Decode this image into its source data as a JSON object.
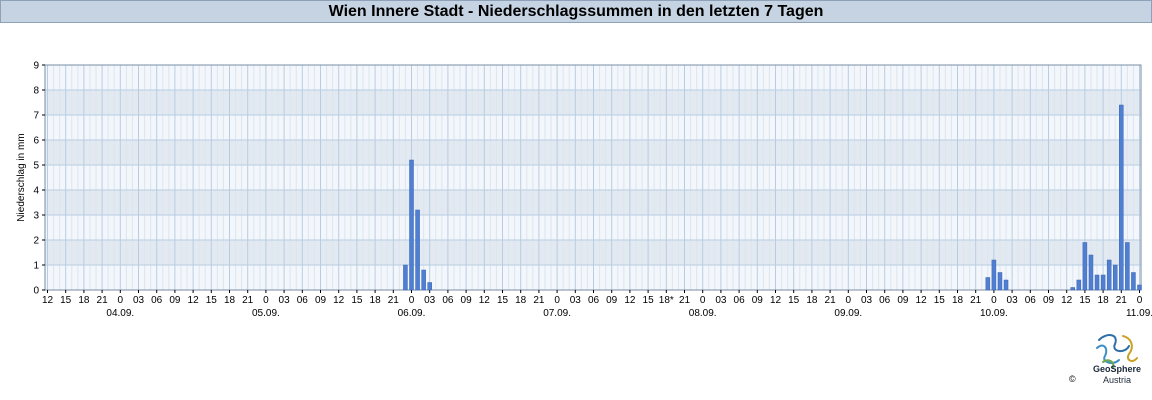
{
  "title": "Wien Innere Stadt - Niederschlagssummen in den letzten 7 Tagen",
  "chart_data": {
    "type": "bar",
    "title": "Wien Innere Stadt - Niederschlagssummen in den letzten 7 Tagen",
    "ylabel": "Niederschlag in mm",
    "xlabel": "",
    "ylim": [
      0,
      9
    ],
    "yticks": [
      0,
      1,
      2,
      3,
      4,
      5,
      6,
      7,
      8,
      9
    ],
    "grid": true,
    "x_hour_ticks": [
      "12",
      "15",
      "18",
      "21",
      "0",
      "03",
      "06",
      "09",
      "12",
      "15",
      "18",
      "21",
      "0",
      "03",
      "06",
      "09",
      "12",
      "15",
      "18",
      "21",
      "0",
      "03",
      "06",
      "09",
      "12",
      "15",
      "18",
      "21",
      "0",
      "03",
      "06",
      "09",
      "12",
      "15",
      "18*",
      "21",
      "0",
      "03",
      "06",
      "09",
      "12",
      "15",
      "18",
      "21",
      "0",
      "03",
      "06",
      "09",
      "12",
      "15",
      "18",
      "21",
      "0",
      "03",
      "06",
      "09",
      "12",
      "15",
      "18",
      "21",
      "0"
    ],
    "date_labels": [
      "04.09.",
      "05.09.",
      "06.09.",
      "07.09.",
      "08.09.",
      "09.09.",
      "10.09.",
      "11.09."
    ],
    "bar_unit": "hourly precipitation sum (mm)",
    "series": [
      {
        "values": [
          {
            "x": "05.09. 23:00",
            "y": 1.0
          },
          {
            "x": "06.09. 00:00",
            "y": 5.2
          },
          {
            "x": "06.09. 01:00",
            "y": 3.2
          },
          {
            "x": "06.09. 02:00",
            "y": 0.8
          },
          {
            "x": "06.09. 03:00",
            "y": 0.3
          },
          {
            "x": "09.09. 23:00",
            "y": 0.5
          },
          {
            "x": "10.09. 00:00",
            "y": 1.2
          },
          {
            "x": "10.09. 01:00",
            "y": 0.7
          },
          {
            "x": "10.09. 02:00",
            "y": 0.4
          },
          {
            "x": "10.09. 13:00",
            "y": 0.1
          },
          {
            "x": "10.09. 14:00",
            "y": 0.4
          },
          {
            "x": "10.09. 15:00",
            "y": 1.9
          },
          {
            "x": "10.09. 16:00",
            "y": 1.4
          },
          {
            "x": "10.09. 17:00",
            "y": 0.6
          },
          {
            "x": "10.09. 18:00",
            "y": 0.6
          },
          {
            "x": "10.09. 19:00",
            "y": 1.2
          },
          {
            "x": "10.09. 20:00",
            "y": 1.0
          },
          {
            "x": "10.09. 21:00",
            "y": 7.4
          },
          {
            "x": "10.09. 22:00",
            "y": 1.9
          },
          {
            "x": "10.09. 23:00",
            "y": 0.7
          },
          {
            "x": "11.09. 00:00",
            "y": 0.2
          }
        ]
      }
    ],
    "bar_color": "#4f7fd3"
  },
  "logo": {
    "name": "GeoSphere",
    "sub": "Austria",
    "copyright": "©"
  }
}
